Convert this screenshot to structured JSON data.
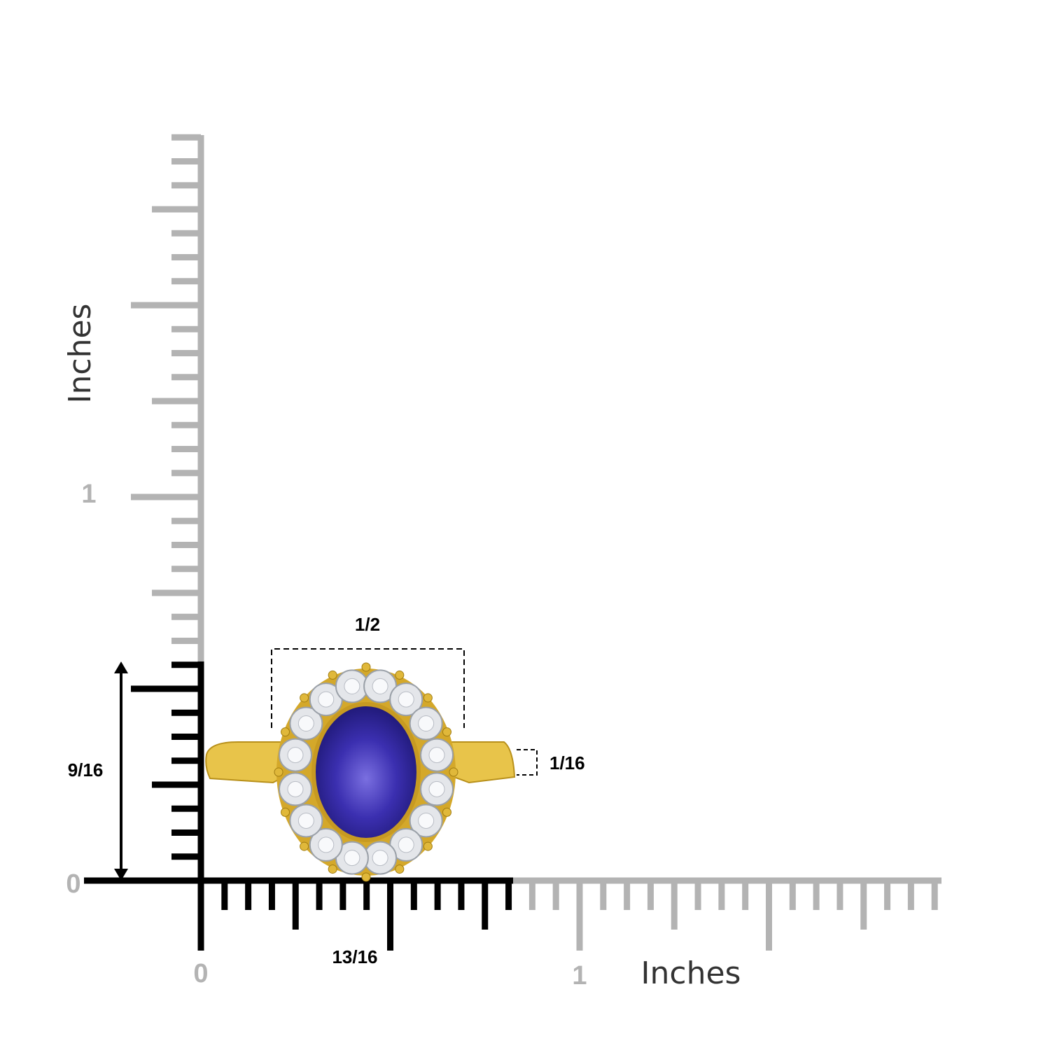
{
  "vertical_ruler": {
    "axis_label": "Inches",
    "labels": [
      "1",
      "0"
    ]
  },
  "horizontal_ruler": {
    "axis_label": "Inches",
    "labels": [
      "0",
      "1"
    ]
  },
  "dimensions": {
    "width": "1/2",
    "band_width": "1/16",
    "height": "9/16",
    "length": "13/16"
  }
}
